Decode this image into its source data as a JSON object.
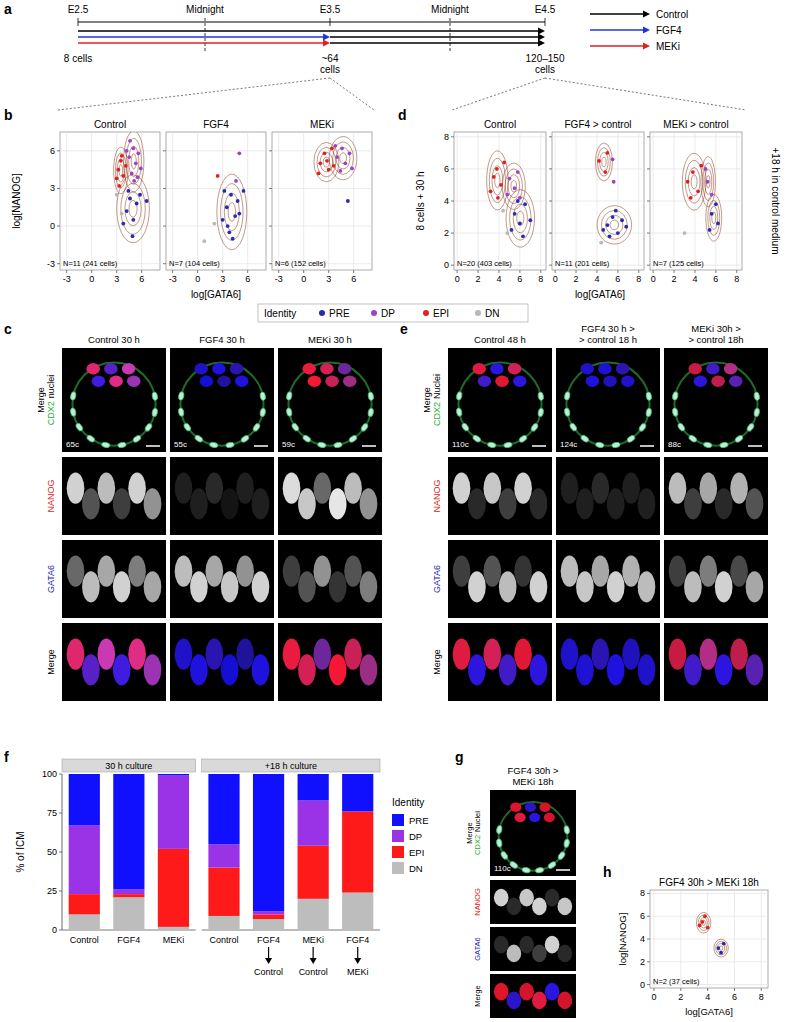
{
  "panels": {
    "a": {
      "letter": "a",
      "timepoints": [
        "E2.5",
        "Midnight",
        "E3.5",
        "Midnight",
        "E4.5"
      ],
      "stages": [
        [
          "8 cells"
        ],
        [
          "~64",
          "cells"
        ],
        [
          "120–150",
          "cells"
        ]
      ],
      "legend": [
        {
          "name": "Control",
          "color": "#000000"
        },
        {
          "name": "FGF4",
          "color": "#2233dd"
        },
        {
          "name": "MEKi",
          "color": "#dd2222"
        }
      ]
    },
    "b": {
      "letter": "b",
      "xlabel": "log[GATA6]",
      "ylabel": "log[NANOG]"
    },
    "c": {
      "letter": "c",
      "row_labels": {
        "merge": "Merge",
        "cdx2": "CDX2",
        "nuclei": "nuclei",
        "nanog": "NANOG",
        "gata6": "GATA6",
        "merge_bottom": "Merge"
      },
      "columns": [
        {
          "title": [
            "Control 30 h"
          ],
          "count": "65c"
        },
        {
          "title": [
            "FGF4 30 h"
          ],
          "count": "55c"
        },
        {
          "title": [
            "MEKi 30 h"
          ],
          "count": "59c"
        }
      ]
    },
    "d": {
      "letter": "d",
      "xlabel": "log[GATA6]",
      "ylabel": "8 cells + 30 h",
      "side_label": "+18 h in control medium"
    },
    "e": {
      "letter": "e",
      "row_labels": {
        "merge": "Merge",
        "cdx2": "CDX2",
        "nuclei": "Nuclei",
        "nanog": "NANOG",
        "gata6": "GATA6",
        "merge_bottom": "Merge"
      },
      "columns": [
        {
          "title": [
            "Control 48 h"
          ],
          "count": "110c"
        },
        {
          "title": [
            "FGF4 30 h >",
            "> control 18 h"
          ],
          "count": "124c"
        },
        {
          "title": [
            "MEKi 30h >",
            "> control 18h"
          ],
          "count": "88c"
        }
      ]
    },
    "f": {
      "letter": "f"
    },
    "g": {
      "letter": "g",
      "row_labels": {
        "merge": "Merge",
        "cdx2": "CDX2",
        "nuclei": "Nuclei",
        "nanog": "NANOG",
        "gata6": "GATA6",
        "merge_bottom": "Merge"
      },
      "columns": [
        {
          "title": [
            "FGF4 30h >",
            "MEKi 18h"
          ],
          "count": "110c"
        }
      ]
    },
    "h": {
      "letter": "h"
    }
  },
  "identity_legend": {
    "title": "Identity"
  },
  "chart_data": [
    {
      "type": "scatter",
      "title": "Control",
      "annotation": "N=11 (241 cells)",
      "xlim": [
        -3.8,
        8.2
      ],
      "xticks": [
        -3,
        0,
        3,
        6
      ],
      "ylim": [
        -3.5,
        7.5
      ],
      "yticks": [
        -3,
        0,
        3,
        6
      ],
      "grid": true,
      "marker": "circle",
      "series": [
        {
          "name": "PRE",
          "color": "#2a2ab0",
          "x": [
            4.2,
            5.0,
            4.6,
            5.4,
            3.8,
            4.9,
            5.8,
            4.4,
            6.6
          ],
          "values": [
            1.2,
            0.5,
            2.2,
            1.8,
            0.2,
            -0.8,
            2.5,
            2.8,
            2.0
          ]
        },
        {
          "name": "DP",
          "color": "#a040c8",
          "x": [
            4.5,
            5.0,
            5.3,
            4.8,
            5.6,
            4.2,
            5.9,
            5.1,
            4.6,
            5.5
          ],
          "values": [
            5.5,
            6.2,
            5.0,
            4.2,
            5.8,
            6.0,
            4.6,
            3.6,
            6.8,
            3.9
          ]
        },
        {
          "name": "EPI",
          "color": "#e02020",
          "x": [
            3.2,
            3.5,
            3.8,
            3.0,
            3.6,
            4.1,
            3.3
          ],
          "values": [
            4.5,
            5.2,
            4.0,
            3.8,
            5.6,
            4.8,
            3.2
          ]
        },
        {
          "name": "DN",
          "color": "#b8b8b8",
          "x": [
            3.6,
            3.0
          ],
          "values": [
            1.0,
            2.5
          ]
        }
      ]
    },
    {
      "type": "scatter",
      "title": "FGF4",
      "annotation": "N=7 (104 cells)",
      "xlim": [
        -3.8,
        8.2
      ],
      "xticks": [
        -3,
        0,
        3,
        6
      ],
      "ylim": [
        -3.5,
        7.5
      ],
      "yticks": [
        -3,
        0,
        3,
        6
      ],
      "grid": true,
      "tick_labels": "x",
      "marker": "circle",
      "series": [
        {
          "name": "PRE",
          "color": "#2a2ab0",
          "x": [
            3.0,
            3.5,
            4.0,
            4.5,
            3.8,
            4.8,
            3.2,
            5.0,
            4.2,
            5.5,
            3.6
          ],
          "values": [
            0.5,
            1.5,
            2.5,
            0.8,
            -0.5,
            2.0,
            2.8,
            1.0,
            -1.0,
            2.8,
            0.0
          ]
        },
        {
          "name": "DP",
          "color": "#a040c8",
          "x": [
            5.0,
            4.6
          ],
          "values": [
            5.8,
            3.6
          ]
        },
        {
          "name": "EPI",
          "color": "#e02020",
          "x": [
            2.4
          ],
          "values": [
            4.0
          ]
        },
        {
          "name": "DN",
          "color": "#b8b8b8",
          "x": [
            0.8,
            2.0
          ],
          "values": [
            -1.2,
            0.2
          ]
        }
      ]
    },
    {
      "type": "scatter",
      "title": "MEKi",
      "annotation": "N=6 (152 cells)",
      "xlim": [
        -3.8,
        8.2
      ],
      "xticks": [
        -3,
        0,
        3,
        6
      ],
      "ylim": [
        -3.5,
        7.5
      ],
      "yticks": [
        -3,
        0,
        3,
        6
      ],
      "grid": true,
      "tick_labels": "x",
      "marker": "circle",
      "series": [
        {
          "name": "PRE",
          "color": "#2a2ab0",
          "x": [
            5.3
          ],
          "values": [
            2.0
          ]
        },
        {
          "name": "DP",
          "color": "#a040c8",
          "x": [
            4.0,
            4.6,
            5.0,
            4.4,
            5.5,
            5.8,
            3.8
          ],
          "values": [
            5.5,
            6.2,
            5.0,
            4.4,
            5.8,
            4.6,
            6.4
          ]
        },
        {
          "name": "EPI",
          "color": "#e02020",
          "x": [
            2.0,
            2.5,
            3.0,
            1.8,
            3.4,
            2.8,
            3.6
          ],
          "values": [
            5.0,
            5.8,
            4.5,
            4.2,
            6.2,
            5.2,
            4.8
          ]
        },
        {
          "name": "DN",
          "color": "#b8b8b8",
          "x": [],
          "values": []
        }
      ]
    },
    {
      "type": "scatter",
      "title": "Control",
      "annotation": "N=20 (403 cells)",
      "xlim": [
        -0.3,
        8.5
      ],
      "xticks": [
        0,
        2,
        4,
        6,
        8
      ],
      "ylim": [
        -0.3,
        8.3
      ],
      "yticks": [
        0,
        2,
        4,
        6,
        8
      ],
      "grid": true,
      "marker": "circle",
      "series": [
        {
          "name": "PRE",
          "color": "#2a2ab0",
          "x": [
            5.5,
            6.0,
            6.5,
            5.2,
            6.3,
            5.8,
            7.0
          ],
          "values": [
            3.2,
            2.6,
            3.8,
            2.2,
            1.8,
            4.0,
            2.8
          ]
        },
        {
          "name": "DP",
          "color": "#a040c8",
          "x": [
            5.0,
            5.5,
            4.8,
            5.8,
            6.0
          ],
          "values": [
            5.4,
            4.8,
            4.4,
            5.8,
            4.2
          ]
        },
        {
          "name": "EPI",
          "color": "#e02020",
          "x": [
            3.5,
            3.8,
            4.2,
            3.2,
            4.5,
            3.9
          ],
          "values": [
            5.5,
            6.0,
            5.0,
            4.6,
            6.4,
            4.2
          ]
        },
        {
          "name": "DN",
          "color": "#b8b8b8",
          "x": [
            4.8,
            4.4
          ],
          "values": [
            2.0,
            3.4
          ]
        }
      ]
    },
    {
      "type": "scatter",
      "title": "FGF4 > control",
      "annotation": "N=11 (201 cells)",
      "xlim": [
        -0.3,
        8.5
      ],
      "xticks": [
        0,
        2,
        4,
        6,
        8
      ],
      "ylim": [
        -0.3,
        8.3
      ],
      "yticks": [
        0,
        2,
        4,
        6,
        8
      ],
      "grid": true,
      "tick_labels": "x",
      "marker": "circle",
      "series": [
        {
          "name": "PRE",
          "color": "#2a2ab0",
          "x": [
            5.0,
            5.5,
            6.0,
            5.2,
            6.4,
            5.8,
            4.6,
            6.8
          ],
          "values": [
            2.5,
            3.0,
            2.0,
            1.8,
            2.8,
            3.4,
            2.2,
            2.4
          ]
        },
        {
          "name": "DP",
          "color": "#a040c8",
          "x": [
            5.5,
            5.6
          ],
          "values": [
            6.6,
            5.2
          ]
        },
        {
          "name": "EPI",
          "color": "#e02020",
          "x": [
            4.2,
            5.0,
            4.8
          ],
          "values": [
            6.5,
            7.0,
            5.8
          ]
        },
        {
          "name": "DN",
          "color": "#b8b8b8",
          "x": [
            4.4
          ],
          "values": [
            1.4
          ]
        }
      ]
    },
    {
      "type": "scatter",
      "title": "MEKi > control",
      "annotation": "N=7 (125 cells)",
      "xlim": [
        -0.3,
        8.5
      ],
      "xticks": [
        0,
        2,
        4,
        6,
        8
      ],
      "ylim": [
        -0.3,
        8.3
      ],
      "yticks": [
        0,
        2,
        4,
        6,
        8
      ],
      "grid": true,
      "tick_labels": "x",
      "marker": "circle",
      "series": [
        {
          "name": "PRE",
          "color": "#2a2ab0",
          "x": [
            5.6,
            6.2,
            5.4,
            6.0
          ],
          "values": [
            3.2,
            2.6,
            2.2,
            3.8
          ]
        },
        {
          "name": "DP",
          "color": "#a040c8",
          "x": [
            5.2,
            5.6,
            5.0
          ],
          "values": [
            5.2,
            4.4,
            6.0
          ]
        },
        {
          "name": "EPI",
          "color": "#e02020",
          "x": [
            3.3,
            3.8,
            4.3,
            3.6,
            4.6
          ],
          "values": [
            5.2,
            5.8,
            4.6,
            4.2,
            6.2
          ]
        },
        {
          "name": "DN",
          "color": "#b8b8b8",
          "x": [
            3.0
          ],
          "values": [
            2.0
          ]
        }
      ]
    },
    {
      "type": "bar",
      "stacked": true,
      "ylabel": "% of ICM",
      "ylim": [
        0,
        100
      ],
      "yticks": [
        0,
        25,
        50,
        75,
        100
      ],
      "facets": [
        "30 h culture",
        "+18 h culture"
      ],
      "facet_index": [
        0,
        0,
        0,
        1,
        1,
        1,
        1
      ],
      "categories": [
        "Control",
        "FGF4",
        "MEKi",
        "Control",
        "FGF4",
        "MEKi",
        "FGF4"
      ],
      "categories_then": [
        null,
        null,
        null,
        null,
        "Control",
        "Control",
        "MEKi"
      ],
      "legend": "right",
      "legend_title": "Identity",
      "series": [
        {
          "name": "PRE",
          "color": "#1010ff",
          "values": [
            33,
            74,
            1,
            45,
            88,
            17,
            24
          ]
        },
        {
          "name": "DP",
          "color": "#9a32e6",
          "values": [
            44,
            3,
            47,
            15,
            2,
            29,
            0
          ]
        },
        {
          "name": "EPI",
          "color": "#ff1a1a",
          "values": [
            13,
            2,
            50,
            31,
            3,
            34,
            52
          ]
        },
        {
          "name": "DN",
          "color": "#bdbdbd",
          "values": [
            10,
            21,
            2,
            9,
            7,
            20,
            24
          ]
        }
      ]
    },
    {
      "type": "scatter",
      "title": "FGF4 30h > MEKi 18h",
      "annotation": "N=2 (37 cells)",
      "xlabel": "log[GATA6]",
      "ylabel": "log[NANOG]",
      "xlim": [
        -0.3,
        8.5
      ],
      "xticks": [
        0,
        2,
        4,
        6,
        8
      ],
      "ylim": [
        -0.3,
        8.3
      ],
      "yticks": [
        0,
        2,
        4,
        6,
        8
      ],
      "grid": true,
      "marker": "circle",
      "series": [
        {
          "name": "PRE",
          "color": "#2a2ab0",
          "x": [
            4.8,
            5.2,
            5.0
          ],
          "values": [
            3.2,
            3.6,
            2.8
          ]
        },
        {
          "name": "DP",
          "color": "#a040c8",
          "x": [],
          "values": []
        },
        {
          "name": "EPI",
          "color": "#e02020",
          "x": [
            3.6,
            3.8,
            4.0,
            3.4
          ],
          "values": [
            5.5,
            6.0,
            5.0,
            5.2
          ]
        },
        {
          "name": "DN",
          "color": "#b8b8b8",
          "x": [],
          "values": []
        }
      ]
    }
  ]
}
